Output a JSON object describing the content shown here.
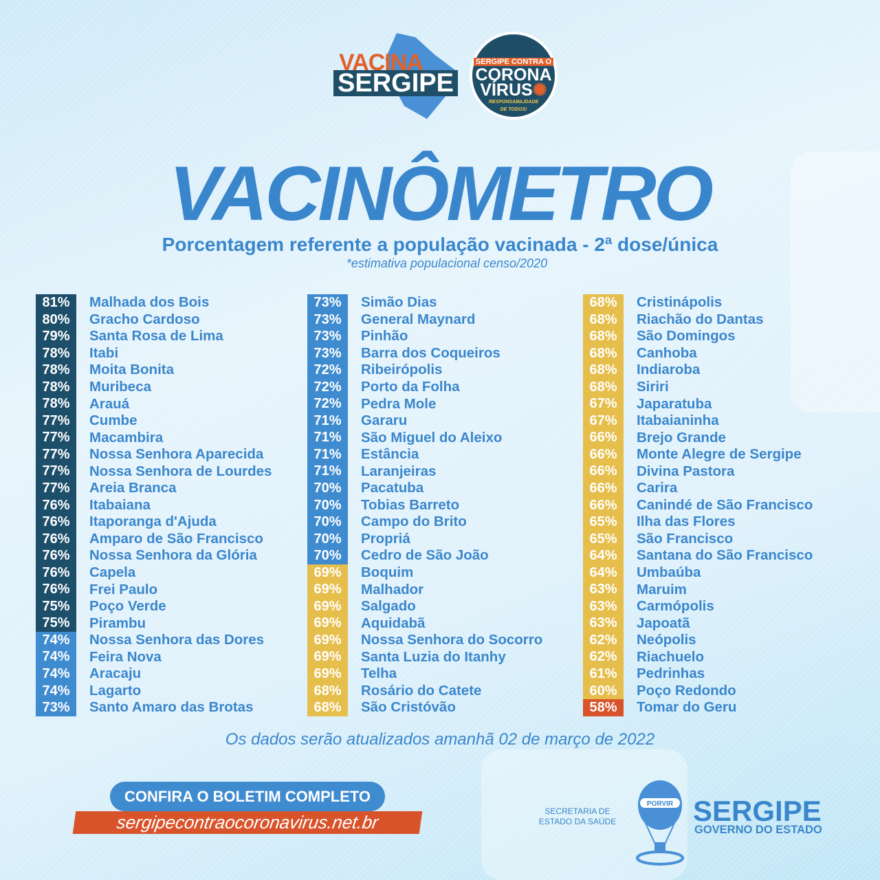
{
  "header": {
    "logo_vacina_top": "VACINA",
    "logo_vacina_bottom": "SERGIPE",
    "badge_line1": "SERGIPE CONTRA O",
    "badge_line2": "CORONA",
    "badge_line3": "VÍRUS",
    "badge_tagline1": "RESPONSABILIDADE",
    "badge_tagline2": "DE TODOS!"
  },
  "title": "VACINÔMETRO",
  "subtitle": "Porcentagem referente a população vacinada - 2ª dose/única",
  "note": "*estimativa populacional censo/2020",
  "tier_colors": {
    "dark": "#1d4f6b",
    "blue": "#3f8bd0",
    "yellow": "#e6be4c",
    "red": "#d9532a"
  },
  "text_color": "#3a86cc",
  "columns": [
    [
      {
        "pct": "81%",
        "name": "Malhada dos Bois",
        "tier": "dark"
      },
      {
        "pct": "80%",
        "name": "Gracho Cardoso",
        "tier": "dark"
      },
      {
        "pct": "79%",
        "name": "Santa Rosa de Lima",
        "tier": "dark"
      },
      {
        "pct": "78%",
        "name": "Itabi",
        "tier": "dark"
      },
      {
        "pct": "78%",
        "name": "Moita Bonita",
        "tier": "dark"
      },
      {
        "pct": "78%",
        "name": "Muribeca",
        "tier": "dark"
      },
      {
        "pct": "78%",
        "name": "Arauá",
        "tier": "dark"
      },
      {
        "pct": "77%",
        "name": "Cumbe",
        "tier": "dark"
      },
      {
        "pct": "77%",
        "name": "Macambira",
        "tier": "dark"
      },
      {
        "pct": "77%",
        "name": "Nossa Senhora Aparecida",
        "tier": "dark"
      },
      {
        "pct": "77%",
        "name": "Nossa Senhora de Lourdes",
        "tier": "dark"
      },
      {
        "pct": "77%",
        "name": "Areia Branca",
        "tier": "dark"
      },
      {
        "pct": "76%",
        "name": "Itabaiana",
        "tier": "dark"
      },
      {
        "pct": "76%",
        "name": "Itaporanga d'Ajuda",
        "tier": "dark"
      },
      {
        "pct": "76%",
        "name": "Amparo de São Francisco",
        "tier": "dark"
      },
      {
        "pct": "76%",
        "name": "Nossa Senhora da Glória",
        "tier": "dark"
      },
      {
        "pct": "76%",
        "name": "Capela",
        "tier": "dark"
      },
      {
        "pct": "76%",
        "name": "Frei Paulo",
        "tier": "dark"
      },
      {
        "pct": "75%",
        "name": "Poço Verde",
        "tier": "dark"
      },
      {
        "pct": "75%",
        "name": "Pirambu",
        "tier": "dark"
      },
      {
        "pct": "74%",
        "name": "Nossa Senhora das Dores",
        "tier": "blue"
      },
      {
        "pct": "74%",
        "name": "Feira Nova",
        "tier": "blue"
      },
      {
        "pct": "74%",
        "name": "Aracaju",
        "tier": "blue"
      },
      {
        "pct": "74%",
        "name": "Lagarto",
        "tier": "blue"
      },
      {
        "pct": "73%",
        "name": "Santo Amaro das Brotas",
        "tier": "blue"
      }
    ],
    [
      {
        "pct": "73%",
        "name": "Simão Dias",
        "tier": "blue"
      },
      {
        "pct": "73%",
        "name": "General Maynard",
        "tier": "blue"
      },
      {
        "pct": "73%",
        "name": "Pinhão",
        "tier": "blue"
      },
      {
        "pct": "73%",
        "name": "Barra dos Coqueiros",
        "tier": "blue"
      },
      {
        "pct": "72%",
        "name": "Ribeirópolis",
        "tier": "blue"
      },
      {
        "pct": "72%",
        "name": "Porto da Folha",
        "tier": "blue"
      },
      {
        "pct": "72%",
        "name": "Pedra Mole",
        "tier": "blue"
      },
      {
        "pct": "71%",
        "name": "Gararu",
        "tier": "blue"
      },
      {
        "pct": "71%",
        "name": "São Miguel do Aleixo",
        "tier": "blue"
      },
      {
        "pct": "71%",
        "name": "Estância",
        "tier": "blue"
      },
      {
        "pct": "71%",
        "name": "Laranjeiras",
        "tier": "blue"
      },
      {
        "pct": "70%",
        "name": "Pacatuba",
        "tier": "blue"
      },
      {
        "pct": "70%",
        "name": "Tobias Barreto",
        "tier": "blue"
      },
      {
        "pct": "70%",
        "name": "Campo do Brito",
        "tier": "blue"
      },
      {
        "pct": "70%",
        "name": "Propriá",
        "tier": "blue"
      },
      {
        "pct": "70%",
        "name": "Cedro de São João",
        "tier": "blue"
      },
      {
        "pct": "69%",
        "name": "Boquim",
        "tier": "yellow"
      },
      {
        "pct": "69%",
        "name": "Malhador",
        "tier": "yellow"
      },
      {
        "pct": "69%",
        "name": "Salgado",
        "tier": "yellow"
      },
      {
        "pct": "69%",
        "name": "Aquidabã",
        "tier": "yellow"
      },
      {
        "pct": "69%",
        "name": "Nossa Senhora do Socorro",
        "tier": "yellow"
      },
      {
        "pct": "69%",
        "name": "Santa Luzia do Itanhy",
        "tier": "yellow"
      },
      {
        "pct": "69%",
        "name": "Telha",
        "tier": "yellow"
      },
      {
        "pct": "68%",
        "name": "Rosário do Catete",
        "tier": "yellow"
      },
      {
        "pct": "68%",
        "name": "São Cristóvão",
        "tier": "yellow"
      }
    ],
    [
      {
        "pct": "68%",
        "name": "Cristinápolis",
        "tier": "yellow"
      },
      {
        "pct": "68%",
        "name": "Riachão do Dantas",
        "tier": "yellow"
      },
      {
        "pct": "68%",
        "name": "São Domingos",
        "tier": "yellow"
      },
      {
        "pct": "68%",
        "name": "Canhoba",
        "tier": "yellow"
      },
      {
        "pct": "68%",
        "name": "Indiaroba",
        "tier": "yellow"
      },
      {
        "pct": "68%",
        "name": "Siriri",
        "tier": "yellow"
      },
      {
        "pct": "67%",
        "name": "Japaratuba",
        "tier": "yellow"
      },
      {
        "pct": "67%",
        "name": "Itabaianinha",
        "tier": "yellow"
      },
      {
        "pct": "66%",
        "name": "Brejo Grande",
        "tier": "yellow"
      },
      {
        "pct": "66%",
        "name": "Monte Alegre de Sergipe",
        "tier": "yellow"
      },
      {
        "pct": "66%",
        "name": "Divina Pastora",
        "tier": "yellow"
      },
      {
        "pct": "66%",
        "name": "Carira",
        "tier": "yellow"
      },
      {
        "pct": "66%",
        "name": "Canindé de São Francisco",
        "tier": "yellow"
      },
      {
        "pct": "65%",
        "name": "Ilha das Flores",
        "tier": "yellow"
      },
      {
        "pct": "65%",
        "name": "São Francisco",
        "tier": "yellow"
      },
      {
        "pct": "64%",
        "name": "Santana do São Francisco",
        "tier": "yellow"
      },
      {
        "pct": "64%",
        "name": "Umbaúba",
        "tier": "yellow"
      },
      {
        "pct": "63%",
        "name": "Maruim",
        "tier": "yellow"
      },
      {
        "pct": "63%",
        "name": "Carmópolis",
        "tier": "yellow"
      },
      {
        "pct": "63%",
        "name": "Japoatã",
        "tier": "yellow"
      },
      {
        "pct": "62%",
        "name": "Neópolis",
        "tier": "yellow"
      },
      {
        "pct": "62%",
        "name": "Riachuelo",
        "tier": "yellow"
      },
      {
        "pct": "61%",
        "name": "Pedrinhas",
        "tier": "yellow"
      },
      {
        "pct": "60%",
        "name": "Poço Redondo",
        "tier": "yellow"
      },
      {
        "pct": "58%",
        "name": "Tomar do Geru",
        "tier": "red"
      }
    ]
  ],
  "update_note": "Os dados serão atualizados amanhã 02 de março de 2022",
  "footer": {
    "cta_label": "CONFIRA O BOLETIM COMPLETO",
    "url": "sergipecontraocoronavirus.net.br",
    "secretaria_line1": "SECRETARIA DE",
    "secretaria_line2": "ESTADO DA SAÚDE",
    "crest_text": "PORVIR",
    "gov_name": "SERGIPE",
    "gov_sub": "GOVERNO DO ESTADO"
  }
}
